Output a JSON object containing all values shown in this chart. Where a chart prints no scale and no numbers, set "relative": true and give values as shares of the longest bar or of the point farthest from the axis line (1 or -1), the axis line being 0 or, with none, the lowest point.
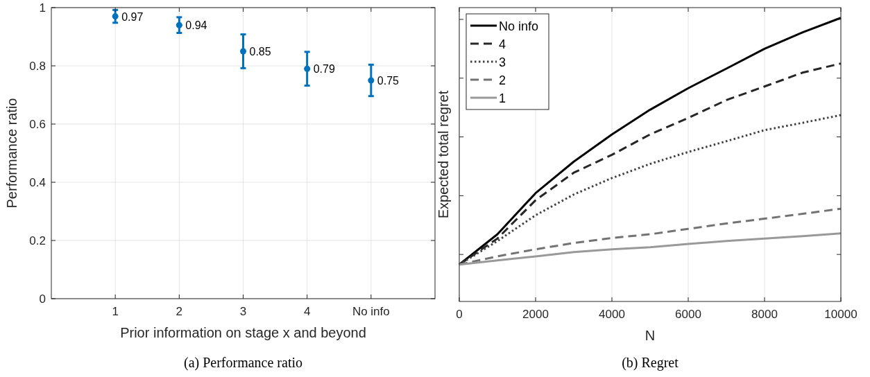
{
  "chart_data": [
    {
      "type": "scatter",
      "title": "(a) Performance ratio",
      "xlabel": "Prior information on stage x and beyond",
      "ylabel": "Performance ratio",
      "categories": [
        "1",
        "2",
        "3",
        "4",
        "No info"
      ],
      "series": [
        {
          "color": "#0072bd",
          "values": [
            0.97,
            0.94,
            0.85,
            0.79,
            0.75
          ],
          "errors": [
            0.022,
            0.027,
            0.058,
            0.058,
            0.054
          ]
        }
      ],
      "ylim": [
        0,
        1
      ],
      "yticks": [
        0,
        0.2,
        0.4,
        0.6,
        0.8,
        1
      ],
      "grid": true,
      "data_labels": true,
      "marker": "circle",
      "legend": false
    },
    {
      "type": "line",
      "title": "(b) Regret",
      "xlabel": "N",
      "ylabel": "Expected total regret",
      "relative": true,
      "x": [
        0,
        1000,
        2000,
        3000,
        4000,
        5000,
        6000,
        7000,
        8000,
        9000,
        10000
      ],
      "xlim": [
        0,
        10000
      ],
      "xticks": [
        0,
        2000,
        4000,
        6000,
        8000,
        10000
      ],
      "grid": "x",
      "legend": "top left",
      "series": [
        {
          "name": "No info",
          "color": "#000000",
          "line_style": "solid",
          "values": [
            0.13,
            0.237,
            0.382,
            0.493,
            0.589,
            0.676,
            0.752,
            0.821,
            0.891,
            0.949,
            1
          ]
        },
        {
          "name": "4",
          "color": "#262626",
          "line_style": "dashed",
          "values": [
            0.13,
            0.222,
            0.357,
            0.454,
            0.517,
            0.589,
            0.647,
            0.71,
            0.758,
            0.807,
            0.839
          ]
        },
        {
          "name": "3",
          "color": "#404040",
          "line_style": "dotted",
          "values": [
            0.13,
            0.213,
            0.304,
            0.377,
            0.435,
            0.485,
            0.527,
            0.565,
            0.604,
            0.63,
            0.657
          ]
        },
        {
          "name": "2",
          "color": "#737373",
          "line_style": "dashed",
          "values": [
            0.13,
            0.159,
            0.184,
            0.206,
            0.224,
            0.237,
            0.256,
            0.275,
            0.292,
            0.309,
            0.327
          ]
        },
        {
          "name": "1",
          "color": "#999999",
          "line_style": "solid",
          "values": [
            0.13,
            0.145,
            0.159,
            0.174,
            0.184,
            0.191,
            0.203,
            0.213,
            0.222,
            0.23,
            0.24
          ]
        }
      ]
    }
  ]
}
